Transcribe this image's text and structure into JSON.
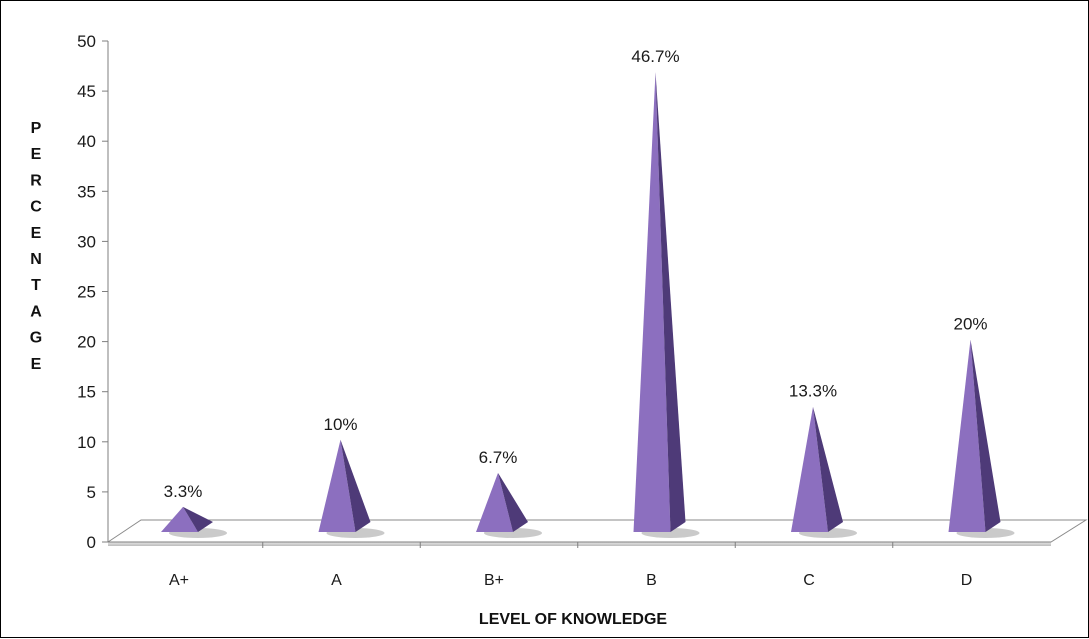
{
  "chart_data": {
    "type": "bar",
    "style": "3d-pyramid",
    "categories": [
      "A+",
      "A",
      "B+",
      "B",
      "C",
      "D"
    ],
    "values": [
      3.3,
      10,
      6.7,
      46.7,
      13.3,
      20
    ],
    "data_labels": [
      "3.3%",
      "10%",
      "6.7%",
      "46.7%",
      "13.3%",
      "20%"
    ],
    "title": "",
    "xlabel": "LEVEL OF KNOWLEDGE",
    "ylabel": "PERCENTAGE",
    "ylim": [
      0,
      50
    ],
    "yticks": [
      0,
      5,
      10,
      15,
      20,
      25,
      30,
      35,
      40,
      45,
      50
    ],
    "grid": false,
    "legend": "none",
    "colors": {
      "pyramid_light": "#8c6fbf",
      "pyramid_dark": "#4e3a78",
      "floor": "#ffffff",
      "floor_shadow": "#c8c8c8",
      "axis": "#7f7f7f"
    }
  }
}
